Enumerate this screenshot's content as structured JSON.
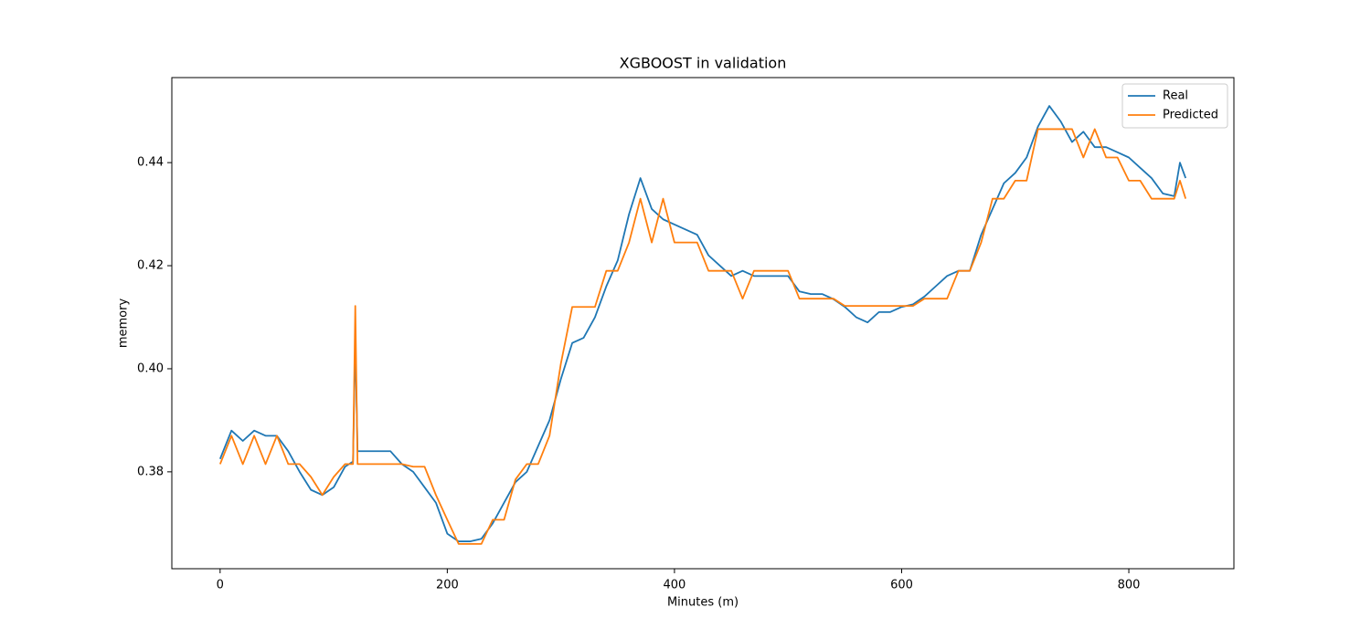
{
  "chart_data": {
    "type": "line",
    "title": "XGBOOST in validation",
    "x_label": "Minutes (m)",
    "y_label": "memory",
    "x": [
      0,
      10,
      20,
      30,
      40,
      50,
      60,
      70,
      80,
      90,
      100,
      110,
      117,
      119,
      121,
      130,
      140,
      150,
      160,
      170,
      180,
      190,
      200,
      210,
      220,
      230,
      240,
      250,
      260,
      270,
      280,
      290,
      300,
      310,
      320,
      330,
      340,
      350,
      360,
      370,
      380,
      390,
      400,
      410,
      420,
      430,
      440,
      450,
      460,
      470,
      480,
      490,
      500,
      510,
      520,
      530,
      540,
      550,
      560,
      570,
      580,
      590,
      600,
      610,
      620,
      630,
      640,
      650,
      660,
      670,
      680,
      690,
      700,
      710,
      720,
      730,
      740,
      750,
      760,
      770,
      780,
      790,
      800,
      810,
      820,
      830,
      840,
      845,
      850
    ],
    "series": [
      {
        "name": "Real",
        "color": "#1f77b4",
        "values": [
          0.3825,
          0.388,
          0.386,
          0.388,
          0.387,
          0.387,
          0.384,
          0.38,
          0.3765,
          0.3755,
          0.377,
          0.381,
          0.382,
          0.406,
          0.384,
          0.384,
          0.384,
          0.384,
          0.3815,
          0.38,
          0.377,
          0.374,
          0.368,
          0.3665,
          0.3665,
          0.367,
          0.37,
          0.374,
          0.378,
          0.38,
          0.385,
          0.39,
          0.398,
          0.405,
          0.406,
          0.41,
          0.416,
          0.421,
          0.43,
          0.437,
          0.431,
          0.429,
          0.428,
          0.427,
          0.426,
          0.422,
          0.42,
          0.418,
          0.419,
          0.418,
          0.418,
          0.418,
          0.418,
          0.415,
          0.4145,
          0.4145,
          0.4135,
          0.412,
          0.41,
          0.409,
          0.411,
          0.411,
          0.412,
          0.4125,
          0.414,
          0.416,
          0.418,
          0.419,
          0.419,
          0.426,
          0.431,
          0.436,
          0.438,
          0.441,
          0.447,
          0.451,
          0.448,
          0.444,
          0.446,
          0.443,
          0.443,
          0.442,
          0.441,
          0.439,
          0.437,
          0.434,
          0.4335,
          0.44,
          0.437
        ]
      },
      {
        "name": "Predicted",
        "color": "#ff7f0e",
        "values": [
          0.3815,
          0.387,
          0.3815,
          0.387,
          0.3815,
          0.387,
          0.3815,
          0.3815,
          0.379,
          0.3755,
          0.379,
          0.3815,
          0.3815,
          0.4122,
          0.3815,
          0.3815,
          0.3815,
          0.3815,
          0.3815,
          0.381,
          0.381,
          0.3755,
          0.3707,
          0.366,
          0.366,
          0.366,
          0.3707,
          0.3707,
          0.3785,
          0.3815,
          0.3815,
          0.387,
          0.401,
          0.412,
          0.412,
          0.412,
          0.419,
          0.419,
          0.4245,
          0.433,
          0.4245,
          0.433,
          0.4245,
          0.4245,
          0.4245,
          0.419,
          0.419,
          0.419,
          0.4136,
          0.419,
          0.419,
          0.419,
          0.419,
          0.4136,
          0.4136,
          0.4136,
          0.4136,
          0.4122,
          0.4122,
          0.4122,
          0.4122,
          0.4122,
          0.4122,
          0.4122,
          0.4136,
          0.4136,
          0.4136,
          0.419,
          0.419,
          0.4245,
          0.433,
          0.433,
          0.4365,
          0.4365,
          0.4465,
          0.4465,
          0.4465,
          0.4465,
          0.441,
          0.4465,
          0.441,
          0.441,
          0.4365,
          0.4365,
          0.433,
          0.433,
          0.433,
          0.4365,
          0.433
        ]
      }
    ],
    "xlim": [
      -42.5,
      892.5
    ],
    "ylim": [
      0.3612,
      0.4565
    ],
    "xticks": [
      0,
      200,
      400,
      600,
      800
    ],
    "yticks": [
      0.38,
      {
        "value": 0.4,
        "label": "0.40"
      },
      0.42,
      0.44
    ],
    "legend": "upper right",
    "grid": false
  }
}
